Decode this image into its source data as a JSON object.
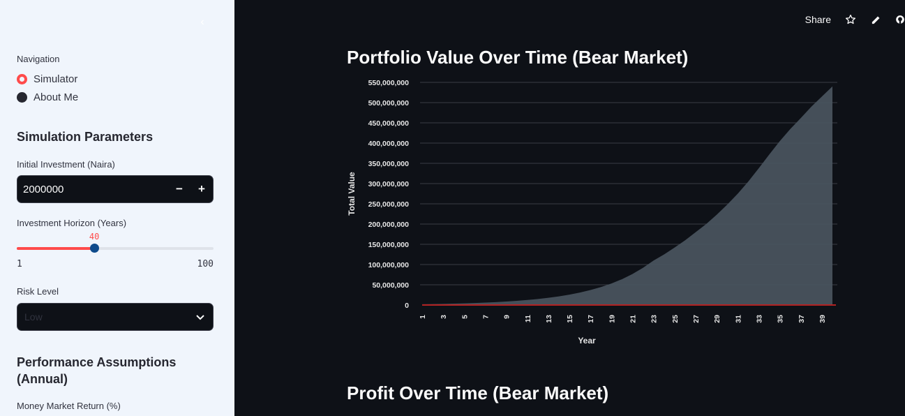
{
  "sidebar": {
    "nav_label": "Navigation",
    "nav_options": [
      {
        "label": "Simulator",
        "selected": true
      },
      {
        "label": "About Me",
        "selected": false
      }
    ],
    "sim_params_title": "Simulation Parameters",
    "initial_investment": {
      "label": "Initial Investment (Naira)",
      "value": "2000000",
      "minus": "−",
      "plus": "+"
    },
    "horizon": {
      "label": "Investment Horizon (Years)",
      "value": 40,
      "min": 1,
      "max": 100,
      "value_text": "40",
      "min_text": "1",
      "max_text": "100"
    },
    "risk": {
      "label": "Risk Level",
      "value": "Low"
    },
    "perf_title_line1": "Performance Assumptions",
    "perf_title_line2": "(Annual)",
    "money_market_label": "Money Market Return (%)"
  },
  "topbar": {
    "share_label": "Share",
    "icons": [
      "star-icon",
      "pencil-icon",
      "github-icon"
    ]
  },
  "main": {
    "chart1_title": "Portfolio Value Over Time (Bear Market)",
    "chart2_title": "Profit Over Time (Bear Market)"
  },
  "chart_data": {
    "type": "area",
    "title": "",
    "xlabel": "Year",
    "ylabel": "Total Value",
    "ylim": [
      0,
      550000000
    ],
    "yticks": [
      0,
      50000000,
      100000000,
      150000000,
      200000000,
      250000000,
      300000000,
      350000000,
      400000000,
      450000000,
      500000000,
      550000000
    ],
    "ytick_labels": [
      "0",
      "50,000,000",
      "100,000,000",
      "150,000,000",
      "200,000,000",
      "250,000,000",
      "300,000,000",
      "350,000,000",
      "400,000,000",
      "450,000,000",
      "500,000,000",
      "550,000,000"
    ],
    "xtick_labels": [
      "1",
      "3",
      "5",
      "7",
      "9",
      "11",
      "13",
      "15",
      "17",
      "19",
      "21",
      "23",
      "25",
      "27",
      "29",
      "31",
      "33",
      "35",
      "37",
      "39"
    ],
    "grid": true,
    "area_color": "#4a5560",
    "baseline_color": "#b22222",
    "series": [
      {
        "x": [
          1,
          2,
          3,
          4,
          5,
          6,
          7,
          8,
          9,
          10,
          11,
          12,
          13,
          14,
          15,
          16,
          17,
          18,
          19,
          20,
          21,
          22,
          23,
          24,
          25,
          26,
          27,
          28,
          29,
          30,
          31,
          32,
          33,
          34,
          35,
          36,
          37,
          38,
          39,
          40
        ],
        "values": [
          2000000,
          2400000,
          2900000,
          3500000,
          4200000,
          5000000,
          6000000,
          7200000,
          8600000,
          10300000,
          12400000,
          14900000,
          17800000,
          21400000,
          25700000,
          30800000,
          37000000,
          44400000,
          53200000,
          63900000,
          76700000,
          92000000,
          110000000,
          125000000,
          142000000,
          160000000,
          180000000,
          200000000,
          223000000,
          248000000,
          275000000,
          305000000,
          338000000,
          372000000,
          405000000,
          435000000,
          462000000,
          490000000,
          515000000,
          540000000
        ]
      },
      {
        "x": [
          1,
          40
        ],
        "values": [
          0,
          0
        ]
      }
    ]
  }
}
